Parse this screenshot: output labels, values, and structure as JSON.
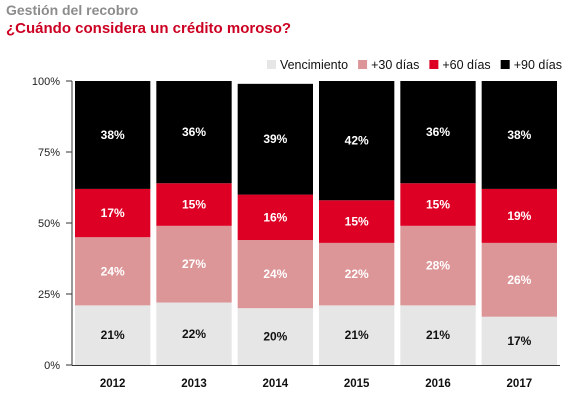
{
  "header": {
    "subtitle": "Gestión del recobro",
    "title": "¿Cuándo considera un crédito moroso?"
  },
  "chart_data": {
    "type": "bar",
    "stacked": true,
    "orientation": "vertical",
    "categories": [
      "2012",
      "2013",
      "2014",
      "2015",
      "2016",
      "2017"
    ],
    "series": [
      {
        "name": "Vencimiento",
        "color": "#e6e6e6",
        "label_color": "#111111",
        "values": [
          21,
          22,
          20,
          21,
          21,
          17
        ]
      },
      {
        "name": "+30 días",
        "color": "#dd9698",
        "label_color": "#ffffff",
        "values": [
          24,
          27,
          24,
          22,
          28,
          26
        ]
      },
      {
        "name": "+60 días",
        "color": "#de0024",
        "label_color": "#ffffff",
        "values": [
          17,
          15,
          16,
          15,
          15,
          19
        ]
      },
      {
        "name": "+90 días",
        "color": "#000000",
        "label_color": "#ffffff",
        "values": [
          38,
          36,
          39,
          42,
          36,
          38
        ]
      }
    ],
    "ylim": [
      0,
      100
    ],
    "yticks": [
      "0%",
      "25%",
      "50%",
      "75%",
      "100%"
    ],
    "ytick_values": [
      0,
      25,
      50,
      75,
      100
    ],
    "value_suffix": "%",
    "legend_position": "top-right",
    "grid": false
  }
}
